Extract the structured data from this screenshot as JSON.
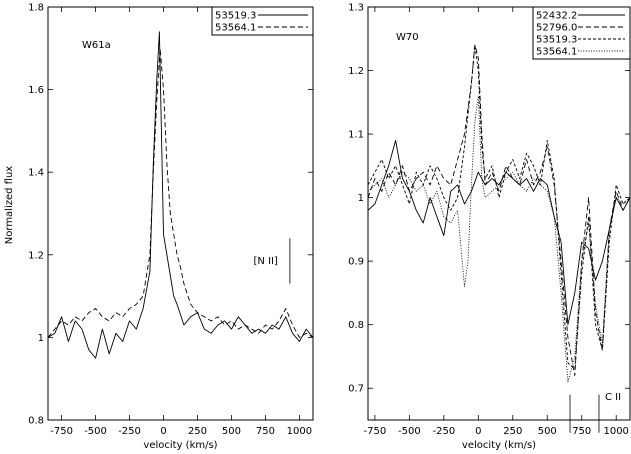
{
  "figure": {
    "ylabel_shared": "Normalized flux"
  },
  "chart_data": [
    {
      "type": "line",
      "panel": "left",
      "title": "",
      "annotation": "W61a",
      "line_label": "[N II]",
      "line_marker_x": [
        930
      ],
      "xlabel": "velocity (km/s)",
      "ylabel": "Normalized flux",
      "xlim": [
        -850,
        1100
      ],
      "ylim": [
        0.8,
        1.8
      ],
      "xticks": [
        -750,
        -500,
        -250,
        0,
        250,
        500,
        750,
        1000
      ],
      "yticks": [
        0.8,
        1.0,
        1.2,
        1.4,
        1.6,
        1.8
      ],
      "ytick_labels": [
        "0.8",
        "1",
        "1.2",
        "1.4",
        "1.6",
        "1.8"
      ],
      "legend_position": "top-right",
      "grid": false,
      "series": [
        {
          "name": "53519.3",
          "style": "solid",
          "x": [
            -850,
            -800,
            -750,
            -700,
            -650,
            -600,
            -550,
            -500,
            -450,
            -400,
            -350,
            -300,
            -250,
            -200,
            -150,
            -100,
            -75,
            -50,
            -30,
            0,
            25,
            50,
            75,
            100,
            150,
            200,
            250,
            300,
            350,
            400,
            450,
            500,
            550,
            600,
            650,
            700,
            750,
            800,
            850,
            900,
            950,
            1000,
            1050,
            1100
          ],
          "y": [
            1.0,
            1.01,
            1.05,
            0.99,
            1.04,
            1.02,
            0.97,
            0.95,
            1.02,
            0.96,
            1.01,
            0.99,
            1.04,
            1.02,
            1.07,
            1.16,
            1.42,
            1.62,
            1.74,
            1.25,
            1.2,
            1.15,
            1.1,
            1.08,
            1.03,
            1.05,
            1.06,
            1.02,
            1.01,
            1.03,
            1.04,
            1.02,
            1.05,
            1.03,
            1.01,
            1.02,
            1.01,
            1.03,
            1.02,
            1.05,
            1.01,
            0.99,
            1.02,
            1.0
          ]
        },
        {
          "name": "53564.1",
          "style": "dashed",
          "x": [
            -850,
            -800,
            -750,
            -700,
            -650,
            -600,
            -550,
            -500,
            -450,
            -400,
            -350,
            -300,
            -250,
            -200,
            -150,
            -100,
            -75,
            -50,
            -25,
            0,
            25,
            50,
            75,
            100,
            125,
            150,
            200,
            250,
            300,
            350,
            400,
            450,
            500,
            550,
            600,
            650,
            700,
            750,
            800,
            850,
            900,
            950,
            1000,
            1050,
            1100
          ],
          "y": [
            1.0,
            1.02,
            1.04,
            1.03,
            1.05,
            1.04,
            1.06,
            1.07,
            1.05,
            1.04,
            1.06,
            1.05,
            1.07,
            1.08,
            1.1,
            1.2,
            1.4,
            1.57,
            1.7,
            1.6,
            1.42,
            1.3,
            1.25,
            1.2,
            1.17,
            1.13,
            1.08,
            1.06,
            1.05,
            1.04,
            1.05,
            1.03,
            1.04,
            1.02,
            1.03,
            1.02,
            1.01,
            1.03,
            1.02,
            1.04,
            1.07,
            1.03,
            1.0,
            1.01,
            1.0
          ]
        }
      ]
    },
    {
      "type": "line",
      "panel": "right",
      "title": "",
      "annotation": "W70",
      "line_label": "C II",
      "line_marker_x": [
        665,
        875
      ],
      "xlabel": "velocity (km/s)",
      "ylabel": "",
      "xlim": [
        -800,
        1100
      ],
      "ylim": [
        0.65,
        1.3
      ],
      "xticks": [
        -750,
        -500,
        -250,
        0,
        250,
        500,
        750,
        1000
      ],
      "yticks": [
        0.7,
        0.8,
        0.9,
        1.0,
        1.1,
        1.2,
        1.3
      ],
      "ytick_labels": [
        "0.7",
        "0.8",
        "0.9",
        "1",
        "1.1",
        "1.2",
        "1.3"
      ],
      "legend_position": "top-right",
      "grid": false,
      "series": [
        {
          "name": "52432.2",
          "style": "solid",
          "x": [
            -800,
            -750,
            -700,
            -650,
            -600,
            -550,
            -500,
            -450,
            -400,
            -350,
            -300,
            -250,
            -200,
            -150,
            -100,
            -50,
            0,
            50,
            100,
            150,
            200,
            250,
            300,
            350,
            400,
            450,
            500,
            550,
            600,
            650,
            700,
            750,
            800,
            850,
            900,
            950,
            1000,
            1050,
            1100
          ],
          "y": [
            0.98,
            0.99,
            1.02,
            1.05,
            1.09,
            1.03,
            1.01,
            0.98,
            0.96,
            1.0,
            0.97,
            0.94,
            1.01,
            1.02,
            0.99,
            1.01,
            1.04,
            1.02,
            1.03,
            1.02,
            1.04,
            1.03,
            1.02,
            1.03,
            1.01,
            1.03,
            1.02,
            0.97,
            0.93,
            0.8,
            0.85,
            0.93,
            0.92,
            0.87,
            0.9,
            0.95,
            1.0,
            0.98,
            1.0
          ]
        },
        {
          "name": "52796.0",
          "style": "dashed",
          "x": [
            -800,
            -750,
            -700,
            -650,
            -600,
            -550,
            -500,
            -450,
            -400,
            -350,
            -300,
            -250,
            -200,
            -150,
            -100,
            -50,
            -25,
            0,
            25,
            50,
            100,
            150,
            200,
            250,
            300,
            350,
            400,
            450,
            500,
            550,
            600,
            650,
            700,
            750,
            800,
            850,
            900,
            950,
            1000,
            1050,
            1100
          ],
          "y": [
            1.0,
            1.03,
            1.01,
            1.04,
            1.02,
            1.05,
            1.01,
            1.03,
            1.04,
            1.02,
            1.05,
            1.03,
            1.02,
            1.06,
            1.1,
            1.18,
            1.24,
            1.22,
            1.1,
            1.02,
            1.04,
            1.01,
            1.05,
            1.03,
            1.02,
            1.06,
            1.02,
            1.04,
            1.08,
            1.02,
            0.9,
            0.78,
            0.72,
            0.9,
            1.0,
            0.82,
            0.76,
            0.95,
            1.01,
            0.98,
            1.0
          ]
        },
        {
          "name": "53519.3",
          "style": "short-dashed",
          "x": [
            -800,
            -750,
            -700,
            -650,
            -600,
            -550,
            -500,
            -450,
            -400,
            -350,
            -300,
            -250,
            -200,
            -150,
            -100,
            -50,
            -25,
            0,
            25,
            50,
            100,
            150,
            200,
            250,
            300,
            350,
            400,
            450,
            500,
            550,
            600,
            650,
            700,
            750,
            800,
            850,
            900,
            950,
            1000,
            1050,
            1100
          ],
          "y": [
            1.02,
            1.04,
            1.06,
            1.03,
            1.05,
            1.02,
            0.99,
            1.04,
            1.02,
            1.05,
            1.03,
            1.0,
            0.98,
            1.0,
            1.08,
            1.18,
            1.24,
            1.2,
            1.08,
            1.03,
            1.05,
            1.0,
            1.04,
            1.06,
            1.03,
            1.07,
            1.05,
            1.02,
            1.09,
            1.03,
            0.88,
            0.74,
            0.73,
            0.88,
            0.97,
            0.8,
            0.76,
            0.93,
            1.02,
            0.99,
            1.0
          ]
        },
        {
          "name": "53564.1",
          "style": "dotted",
          "x": [
            -800,
            -750,
            -700,
            -650,
            -600,
            -550,
            -500,
            -450,
            -400,
            -350,
            -300,
            -250,
            -200,
            -150,
            -100,
            -75,
            -50,
            -25,
            0,
            25,
            50,
            100,
            150,
            200,
            250,
            300,
            350,
            400,
            450,
            500,
            550,
            600,
            650,
            700,
            750,
            800,
            850,
            900,
            950,
            1000,
            1050,
            1100
          ],
          "y": [
            1.01,
            1.02,
            1.03,
            1.0,
            1.02,
            1.04,
            1.03,
            1.01,
            1.02,
            0.99,
            1.01,
            0.97,
            0.96,
            0.98,
            0.86,
            0.9,
            1.02,
            1.12,
            1.16,
            1.03,
            1.0,
            1.01,
            1.02,
            1.03,
            1.04,
            1.02,
            1.01,
            1.03,
            1.02,
            1.01,
            0.97,
            0.85,
            0.71,
            0.75,
            0.9,
            0.96,
            0.83,
            0.77,
            0.95,
            1.0,
            0.99,
            1.0
          ]
        }
      ]
    }
  ]
}
